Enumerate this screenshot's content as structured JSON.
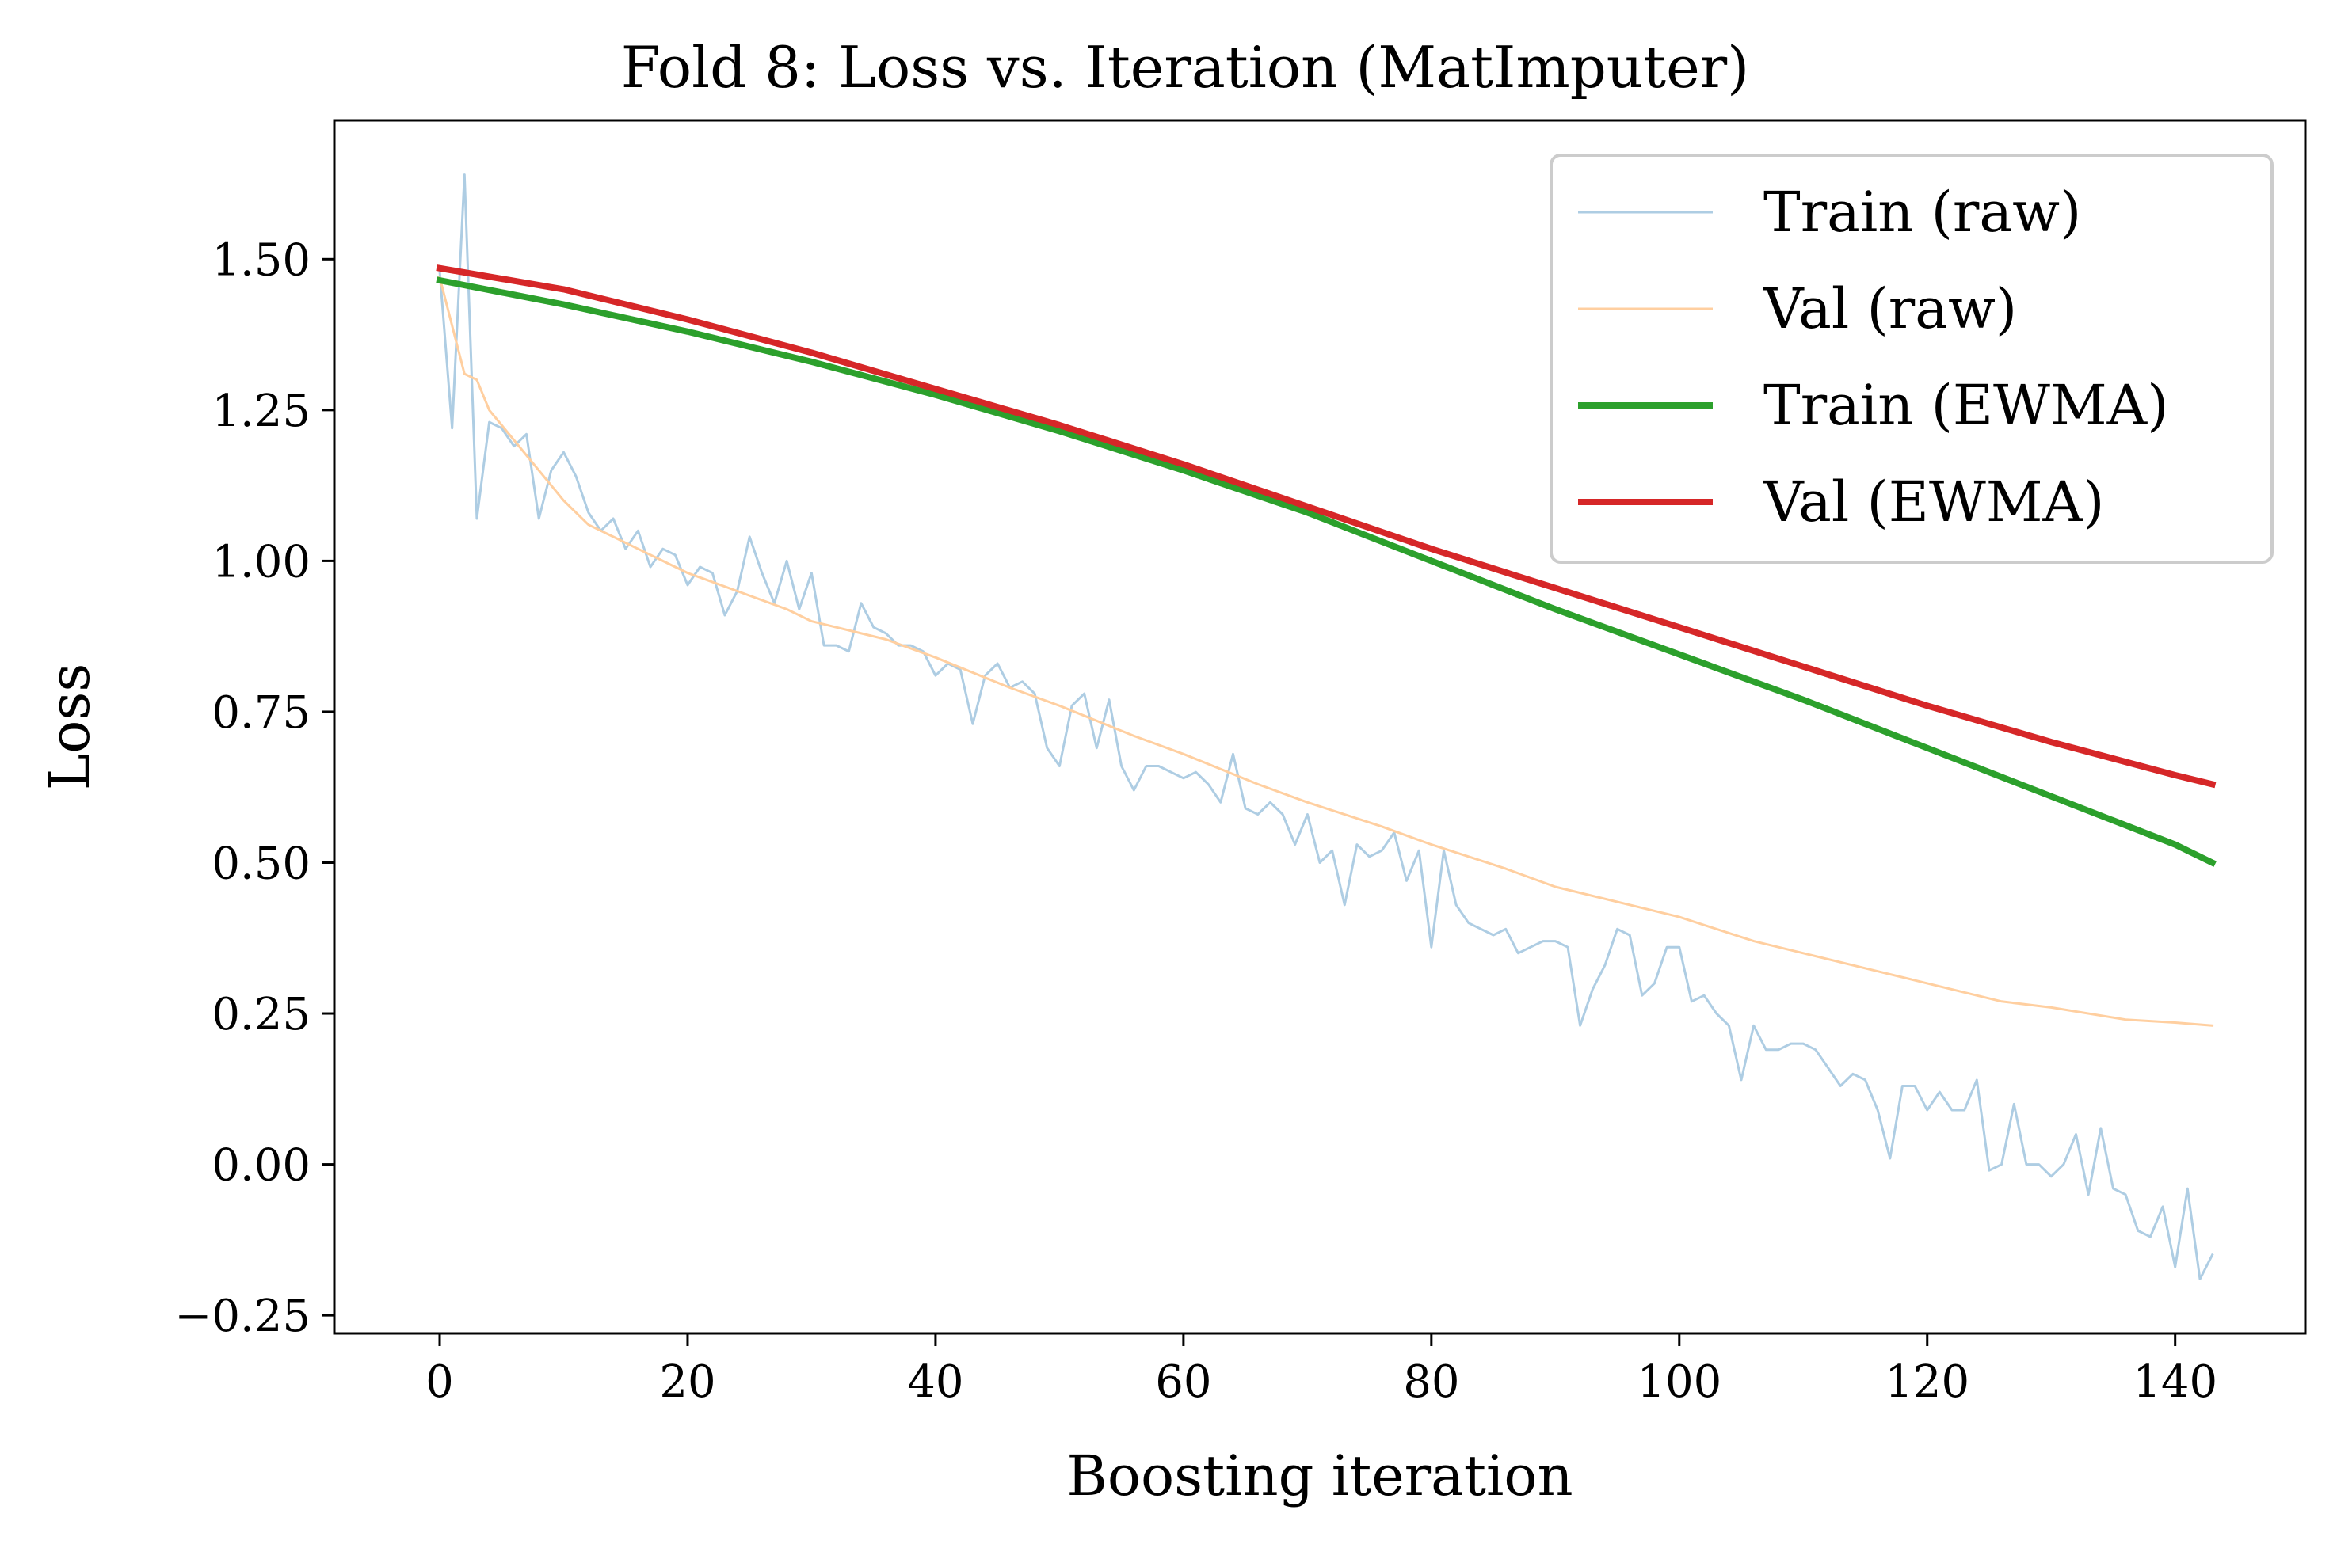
{
  "chart_data": {
    "type": "line",
    "title": "Fold 8: Loss vs. Iteration (MatImputer)",
    "xlabel": "Boosting iteration",
    "ylabel": "Loss",
    "xlim": [
      -8.5,
      150.5
    ],
    "ylim": [
      -0.28,
      1.73
    ],
    "x_ticks": [
      0,
      20,
      40,
      60,
      80,
      100,
      120,
      140
    ],
    "x_tick_labels": [
      "0",
      "20",
      "40",
      "60",
      "80",
      "100",
      "120",
      "140"
    ],
    "y_ticks": [
      -0.25,
      0,
      0.25,
      0.5,
      0.75,
      1.0,
      1.25,
      1.5
    ],
    "y_tick_labels": [
      "−0.25",
      "0.00",
      "0.25",
      "0.50",
      "0.75",
      "1.00",
      "1.25",
      "1.50"
    ],
    "grid": false,
    "legend_position": "top-right",
    "series": [
      {
        "name": "Train (raw)",
        "color": "#aecde3",
        "x": [
          0,
          1,
          2,
          3,
          4,
          5,
          6,
          7,
          8,
          9,
          10,
          11,
          12,
          13,
          14,
          15,
          16,
          17,
          18,
          19,
          20,
          21,
          22,
          23,
          24,
          25,
          26,
          27,
          28,
          29,
          30,
          31,
          32,
          33,
          34,
          35,
          36,
          37,
          38,
          39,
          40,
          41,
          42,
          43,
          44,
          45,
          46,
          47,
          48,
          49,
          50,
          51,
          52,
          53,
          54,
          55,
          56,
          57,
          58,
          59,
          60,
          61,
          62,
          63,
          64,
          65,
          66,
          67,
          68,
          69,
          70,
          71,
          72,
          73,
          74,
          75,
          76,
          77,
          78,
          79,
          80,
          81,
          82,
          83,
          84,
          85,
          86,
          87,
          88,
          89,
          90,
          91,
          92,
          93,
          94,
          95,
          96,
          97,
          98,
          99,
          100,
          101,
          102,
          103,
          104,
          105,
          106,
          107,
          108,
          109,
          110,
          111,
          112,
          113,
          114,
          115,
          116,
          117,
          118,
          119,
          120,
          121,
          122,
          123,
          124,
          125,
          126,
          127,
          128,
          129,
          130,
          131,
          132,
          133,
          134,
          135,
          136,
          137,
          138,
          139,
          140,
          141,
          142,
          143
        ],
        "values": [
          1.48,
          1.22,
          1.64,
          1.07,
          1.23,
          1.22,
          1.19,
          1.21,
          1.07,
          1.15,
          1.18,
          1.14,
          1.08,
          1.05,
          1.07,
          1.02,
          1.05,
          0.99,
          1.02,
          1.01,
          0.96,
          0.99,
          0.98,
          0.91,
          0.95,
          1.04,
          0.98,
          0.93,
          1.0,
          0.92,
          0.98,
          0.86,
          0.86,
          0.85,
          0.93,
          0.89,
          0.88,
          0.86,
          0.86,
          0.85,
          0.81,
          0.83,
          0.82,
          0.73,
          0.81,
          0.83,
          0.79,
          0.8,
          0.78,
          0.69,
          0.66,
          0.76,
          0.78,
          0.69,
          0.77,
          0.66,
          0.62,
          0.66,
          0.66,
          0.65,
          0.64,
          0.65,
          0.63,
          0.6,
          0.68,
          0.59,
          0.58,
          0.6,
          0.58,
          0.53,
          0.58,
          0.5,
          0.52,
          0.43,
          0.53,
          0.51,
          0.52,
          0.55,
          0.47,
          0.52,
          0.36,
          0.52,
          0.43,
          0.4,
          0.39,
          0.38,
          0.39,
          0.35,
          0.36,
          0.37,
          0.37,
          0.36,
          0.23,
          0.29,
          0.33,
          0.39,
          0.38,
          0.28,
          0.3,
          0.36,
          0.36,
          0.27,
          0.28,
          0.25,
          0.23,
          0.14,
          0.23,
          0.19,
          0.19,
          0.2,
          0.2,
          0.19,
          0.16,
          0.13,
          0.15,
          0.14,
          0.09,
          0.01,
          0.13,
          0.13,
          0.09,
          0.12,
          0.09,
          0.09,
          0.14,
          -0.01,
          0.0,
          0.1,
          0.0,
          0.0,
          -0.02,
          0.0,
          0.05,
          -0.05,
          0.06,
          -0.04,
          -0.05,
          -0.11,
          -0.12,
          -0.07,
          -0.17,
          -0.04,
          -0.19,
          -0.15
        ]
      },
      {
        "name": "Val (raw)",
        "color": "#ffcfa0",
        "x": [
          0,
          2,
          3,
          4,
          6,
          8,
          10,
          12,
          14,
          16,
          18,
          20,
          24,
          28,
          30,
          36,
          40,
          46,
          50,
          56,
          60,
          66,
          70,
          76,
          80,
          86,
          90,
          96,
          100,
          106,
          110,
          116,
          120,
          126,
          130,
          136,
          140,
          143
        ],
        "values": [
          1.47,
          1.31,
          1.3,
          1.25,
          1.2,
          1.15,
          1.1,
          1.06,
          1.04,
          1.02,
          1.0,
          0.98,
          0.95,
          0.92,
          0.9,
          0.87,
          0.84,
          0.79,
          0.76,
          0.71,
          0.68,
          0.63,
          0.6,
          0.56,
          0.53,
          0.49,
          0.46,
          0.43,
          0.41,
          0.37,
          0.35,
          0.32,
          0.3,
          0.27,
          0.26,
          0.24,
          0.235,
          0.23
        ]
      },
      {
        "name": "Train (EWMA)",
        "color": "#2ca02c",
        "x": [
          0,
          10,
          20,
          30,
          40,
          50,
          60,
          70,
          80,
          90,
          100,
          110,
          120,
          130,
          140,
          143
        ],
        "values": [
          1.465,
          1.425,
          1.38,
          1.33,
          1.275,
          1.215,
          1.15,
          1.08,
          1.0,
          0.92,
          0.845,
          0.77,
          0.69,
          0.61,
          0.53,
          0.5
        ]
      },
      {
        "name": "Val (EWMA)",
        "color": "#d62728",
        "x": [
          0,
          10,
          20,
          30,
          40,
          50,
          60,
          70,
          80,
          90,
          100,
          110,
          120,
          130,
          140,
          143
        ],
        "values": [
          1.485,
          1.45,
          1.4,
          1.345,
          1.285,
          1.225,
          1.16,
          1.09,
          1.02,
          0.955,
          0.89,
          0.825,
          0.76,
          0.7,
          0.645,
          0.63
        ]
      }
    ]
  }
}
